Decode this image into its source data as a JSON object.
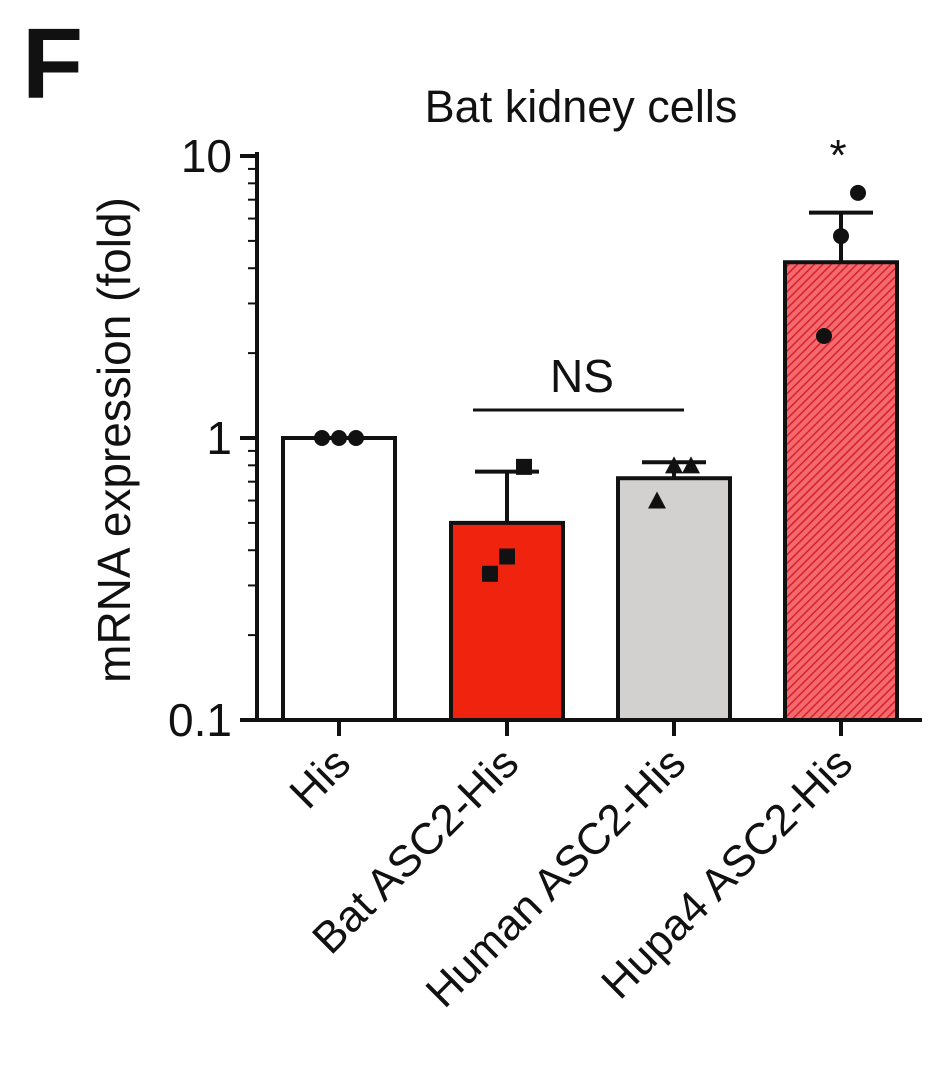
{
  "panel_label": "F",
  "chart_data": {
    "type": "bar",
    "title": "Bat kidney cells",
    "ylabel": "mRNA expression (fold)",
    "xlabel": "",
    "yscale": "log",
    "ylim": [
      0.1,
      10
    ],
    "yticks": [
      "0.1",
      "1",
      "10"
    ],
    "categories": [
      "His",
      "Bat ASC2-His",
      "Human ASC2-His",
      "Hupa4 ASC2-His"
    ],
    "values": [
      1.0,
      0.5,
      0.72,
      4.2
    ],
    "errors": [
      0,
      0.26,
      0.1,
      2.1
    ],
    "points": [
      [
        1.0,
        1.0,
        1.0
      ],
      [
        0.33,
        0.38,
        0.79
      ],
      [
        0.6,
        0.8,
        0.8
      ],
      [
        2.3,
        5.2,
        7.4
      ]
    ],
    "marker_shapes": [
      "circle",
      "square",
      "triangle",
      "circle"
    ],
    "fills": [
      "#ffffff",
      "#f0230f",
      "#d3d1d0",
      "#e9313b"
    ],
    "hatched": [
      false,
      false,
      false,
      true
    ],
    "grid": false,
    "annotations": {
      "ns_label": "NS",
      "star_label": "*"
    }
  }
}
